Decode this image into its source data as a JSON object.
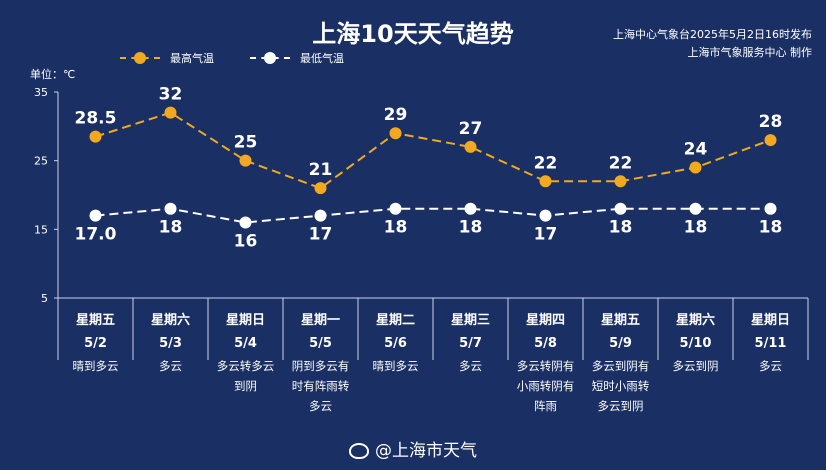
{
  "header": {
    "title": "上海10天天气趋势",
    "source_line1": "上海中心气象台2025年5月2日16时发布",
    "source_line2": "上海市气象服务中心 制作",
    "unit": "单位：℃"
  },
  "footer": {
    "text": "@上海市天气",
    "icon": "weibo-icon"
  },
  "colors": {
    "background": "#1a2f63",
    "high": "#f2a91f",
    "low": "#ffffff",
    "grid": "#cdd3e6"
  },
  "chart_data": {
    "type": "line",
    "title": "上海10天天气趋势",
    "ylabel": "单位：℃",
    "ylim": [
      5,
      35
    ],
    "yticks": [
      "5",
      "15",
      "25",
      "35"
    ],
    "legend": "top-left",
    "grid": false,
    "categories": [
      {
        "weekday": "星期五",
        "date": "5/2",
        "desc": [
          "晴到多云"
        ]
      },
      {
        "weekday": "星期六",
        "date": "5/3",
        "desc": [
          "多云"
        ]
      },
      {
        "weekday": "星期日",
        "date": "5/4",
        "desc": [
          "多云转多云",
          "到阴"
        ]
      },
      {
        "weekday": "星期一",
        "date": "5/5",
        "desc": [
          "阴到多云有",
          "时有阵雨转",
          "多云"
        ]
      },
      {
        "weekday": "星期二",
        "date": "5/6",
        "desc": [
          "晴到多云"
        ]
      },
      {
        "weekday": "星期三",
        "date": "5/7",
        "desc": [
          "多云"
        ]
      },
      {
        "weekday": "星期四",
        "date": "5/8",
        "desc": [
          "多云转阴有",
          "小雨转阴有",
          "阵雨"
        ]
      },
      {
        "weekday": "星期五",
        "date": "5/9",
        "desc": [
          "多云到阴有",
          "短时小雨转",
          "多云到阴"
        ]
      },
      {
        "weekday": "星期六",
        "date": "5/10",
        "desc": [
          "多云到阴"
        ]
      },
      {
        "weekday": "星期日",
        "date": "5/11",
        "desc": [
          "多云"
        ]
      }
    ],
    "series": [
      {
        "name": "最高气温",
        "values": [
          28.5,
          32,
          25,
          21,
          29,
          27,
          22,
          22,
          24,
          28
        ],
        "labels": [
          "28.5",
          "32",
          "25",
          "21",
          "29",
          "27",
          "22",
          "22",
          "24",
          "28"
        ]
      },
      {
        "name": "最低气温",
        "values": [
          17.0,
          18,
          16,
          17,
          18,
          18,
          17,
          18,
          18,
          18
        ],
        "labels": [
          "17.0",
          "18",
          "16",
          "17",
          "18",
          "18",
          "17",
          "18",
          "18",
          "18"
        ]
      }
    ]
  }
}
